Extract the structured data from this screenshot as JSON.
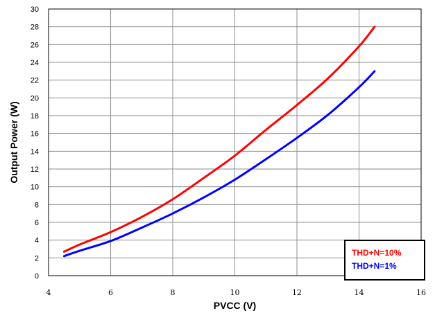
{
  "chart_data": {
    "type": "line",
    "title": "",
    "xlabel": "PVCC (V)",
    "ylabel": "Output Power (W)",
    "xlim": [
      4,
      16
    ],
    "ylim": [
      0,
      30
    ],
    "x_ticks": [
      4,
      6,
      8,
      10,
      12,
      14,
      16
    ],
    "y_ticks": [
      0,
      2,
      4,
      6,
      8,
      10,
      12,
      14,
      16,
      18,
      20,
      22,
      24,
      26,
      28,
      30
    ],
    "grid": true,
    "legend_position": "bottom-right",
    "series": [
      {
        "name": "THD+N=10%",
        "color": "#ff0000",
        "x": [
          4.5,
          5.0,
          6.0,
          7.0,
          8.0,
          9.0,
          10.0,
          11.0,
          12.0,
          13.0,
          14.0,
          14.5
        ],
        "y": [
          2.7,
          3.5,
          4.9,
          6.6,
          8.6,
          11.0,
          13.5,
          16.4,
          19.2,
          22.2,
          25.8,
          28.0
        ]
      },
      {
        "name": "THD+N=1%",
        "color": "#0000ff",
        "x": [
          4.5,
          5.0,
          6.0,
          7.0,
          8.0,
          9.0,
          10.0,
          11.0,
          12.0,
          13.0,
          14.0,
          14.5
        ],
        "y": [
          2.2,
          2.8,
          3.9,
          5.4,
          7.0,
          8.8,
          10.8,
          13.1,
          15.5,
          18.1,
          21.2,
          23.0
        ]
      }
    ]
  }
}
